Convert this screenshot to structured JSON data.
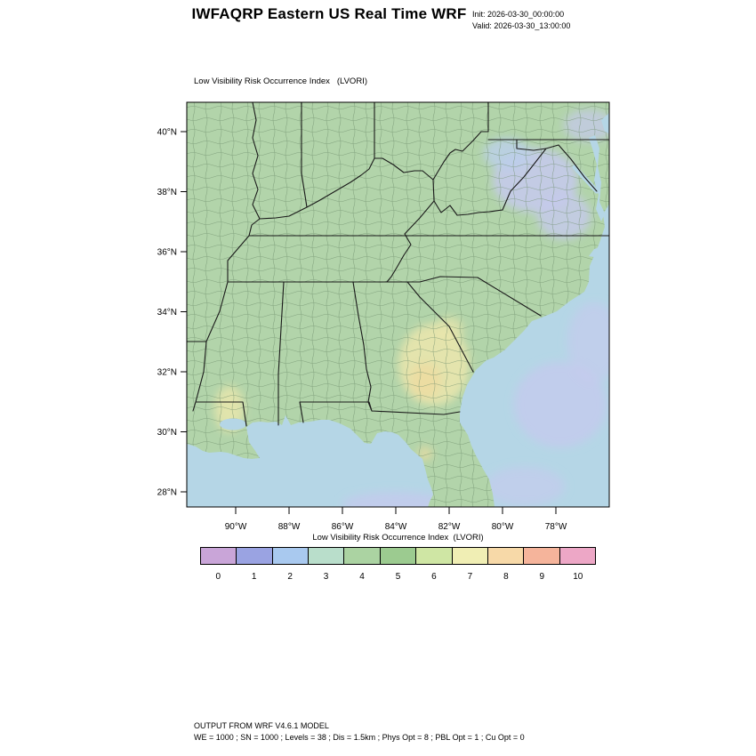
{
  "header": {
    "title": "IWFAQRP Eastern US Real Time WRF",
    "init_label": "Init: 2026-03-30_00:00:00",
    "valid_label": "Valid: 2026-03-30_13:00:00"
  },
  "map": {
    "subtitle": "Low Visibility Risk Occurrence Index   (LVORI)",
    "lat_labels": [
      "40°N",
      "38°N",
      "36°N",
      "34°N",
      "32°N",
      "30°N",
      "28°N"
    ],
    "lon_labels": [
      "90°W",
      "88°W",
      "86°W",
      "84°W",
      "82°W",
      "80°W",
      "78°W"
    ]
  },
  "colorbar": {
    "label": "Low Visibility Risk Occurrence Index  (LVORI)",
    "tick_labels": [
      "0",
      "1",
      "2",
      "3",
      "4",
      "5",
      "6",
      "7",
      "8",
      "9",
      "10"
    ],
    "segment_colors": [
      "#c9a5d8",
      "#9aa3e2",
      "#a9c9ef",
      "#b9decb",
      "#abd3a2",
      "#9ccb90",
      "#cfe6a4",
      "#f0eeb4",
      "#f7d9a8",
      "#f5b49b",
      "#eda7c6"
    ]
  },
  "footer": {
    "line1": "OUTPUT FROM WRF V4.6.1 MODEL",
    "line2": "WE = 1000 ; SN = 1000 ; Levels = 38 ; Dis = 1.5km ; Phys Opt = 8 ; PBL Opt = 1 ; Cu Opt = 0"
  },
  "colors": {
    "land": "#b2d4aa",
    "ocean": "#b5d6e6",
    "county": "#6f8f6d",
    "border": "#1a1a1a",
    "patch_yellow": "#e9e6ad",
    "patch_yellow2": "#ecdca2",
    "patch_lavender": "#c6c9ee",
    "patch_blue": "#bcd0ec"
  }
}
